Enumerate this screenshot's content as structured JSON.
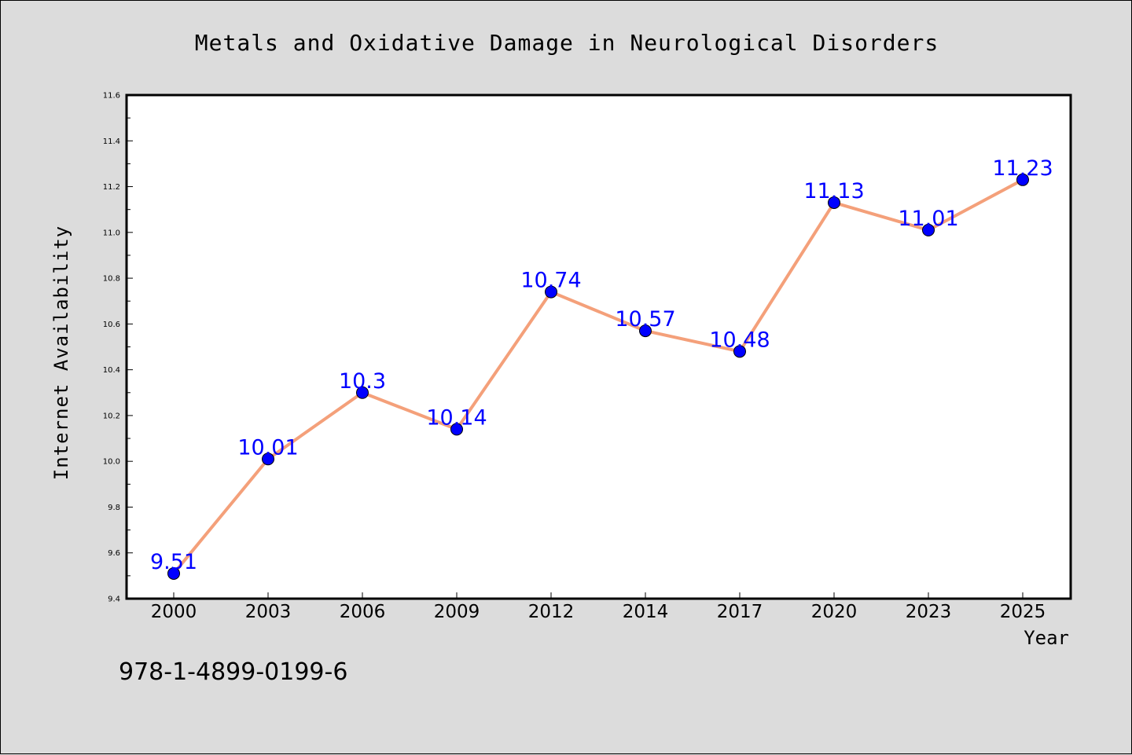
{
  "chart_data": {
    "type": "line",
    "title": "Metals and Oxidative Damage in Neurological Disorders",
    "xlabel": "Year",
    "ylabel": "Internet Availability",
    "categories": [
      "2000",
      "2003",
      "2006",
      "2009",
      "2012",
      "2014",
      "2017",
      "2020",
      "2023",
      "2025"
    ],
    "series": [
      {
        "values": [
          9.51,
          10.01,
          10.3,
          10.14,
          10.74,
          10.57,
          10.48,
          11.13,
          11.01,
          11.23
        ],
        "data_labels": [
          "9.51",
          "10.01",
          "10.3",
          "10.14",
          "10.74",
          "10.57",
          "10.48",
          "11.13",
          "11.01",
          "11.23"
        ],
        "line_color": "#f4a07a",
        "marker_color": "#0000ff",
        "label_color": "#0000ff"
      }
    ],
    "ylim": [
      9.4,
      11.6
    ],
    "yticks": [
      "9.4",
      "9.6",
      "9.8",
      "10.0",
      "10.2",
      "10.4",
      "10.6",
      "10.8",
      "11.0",
      "11.2",
      "11.4",
      "11.6"
    ],
    "grid": false,
    "legend": "none"
  },
  "footer_text": "978-1-4899-0199-6",
  "colors": {
    "background": "#dcdcdc",
    "plot_background": "#ffffff",
    "axis": "#000000"
  }
}
